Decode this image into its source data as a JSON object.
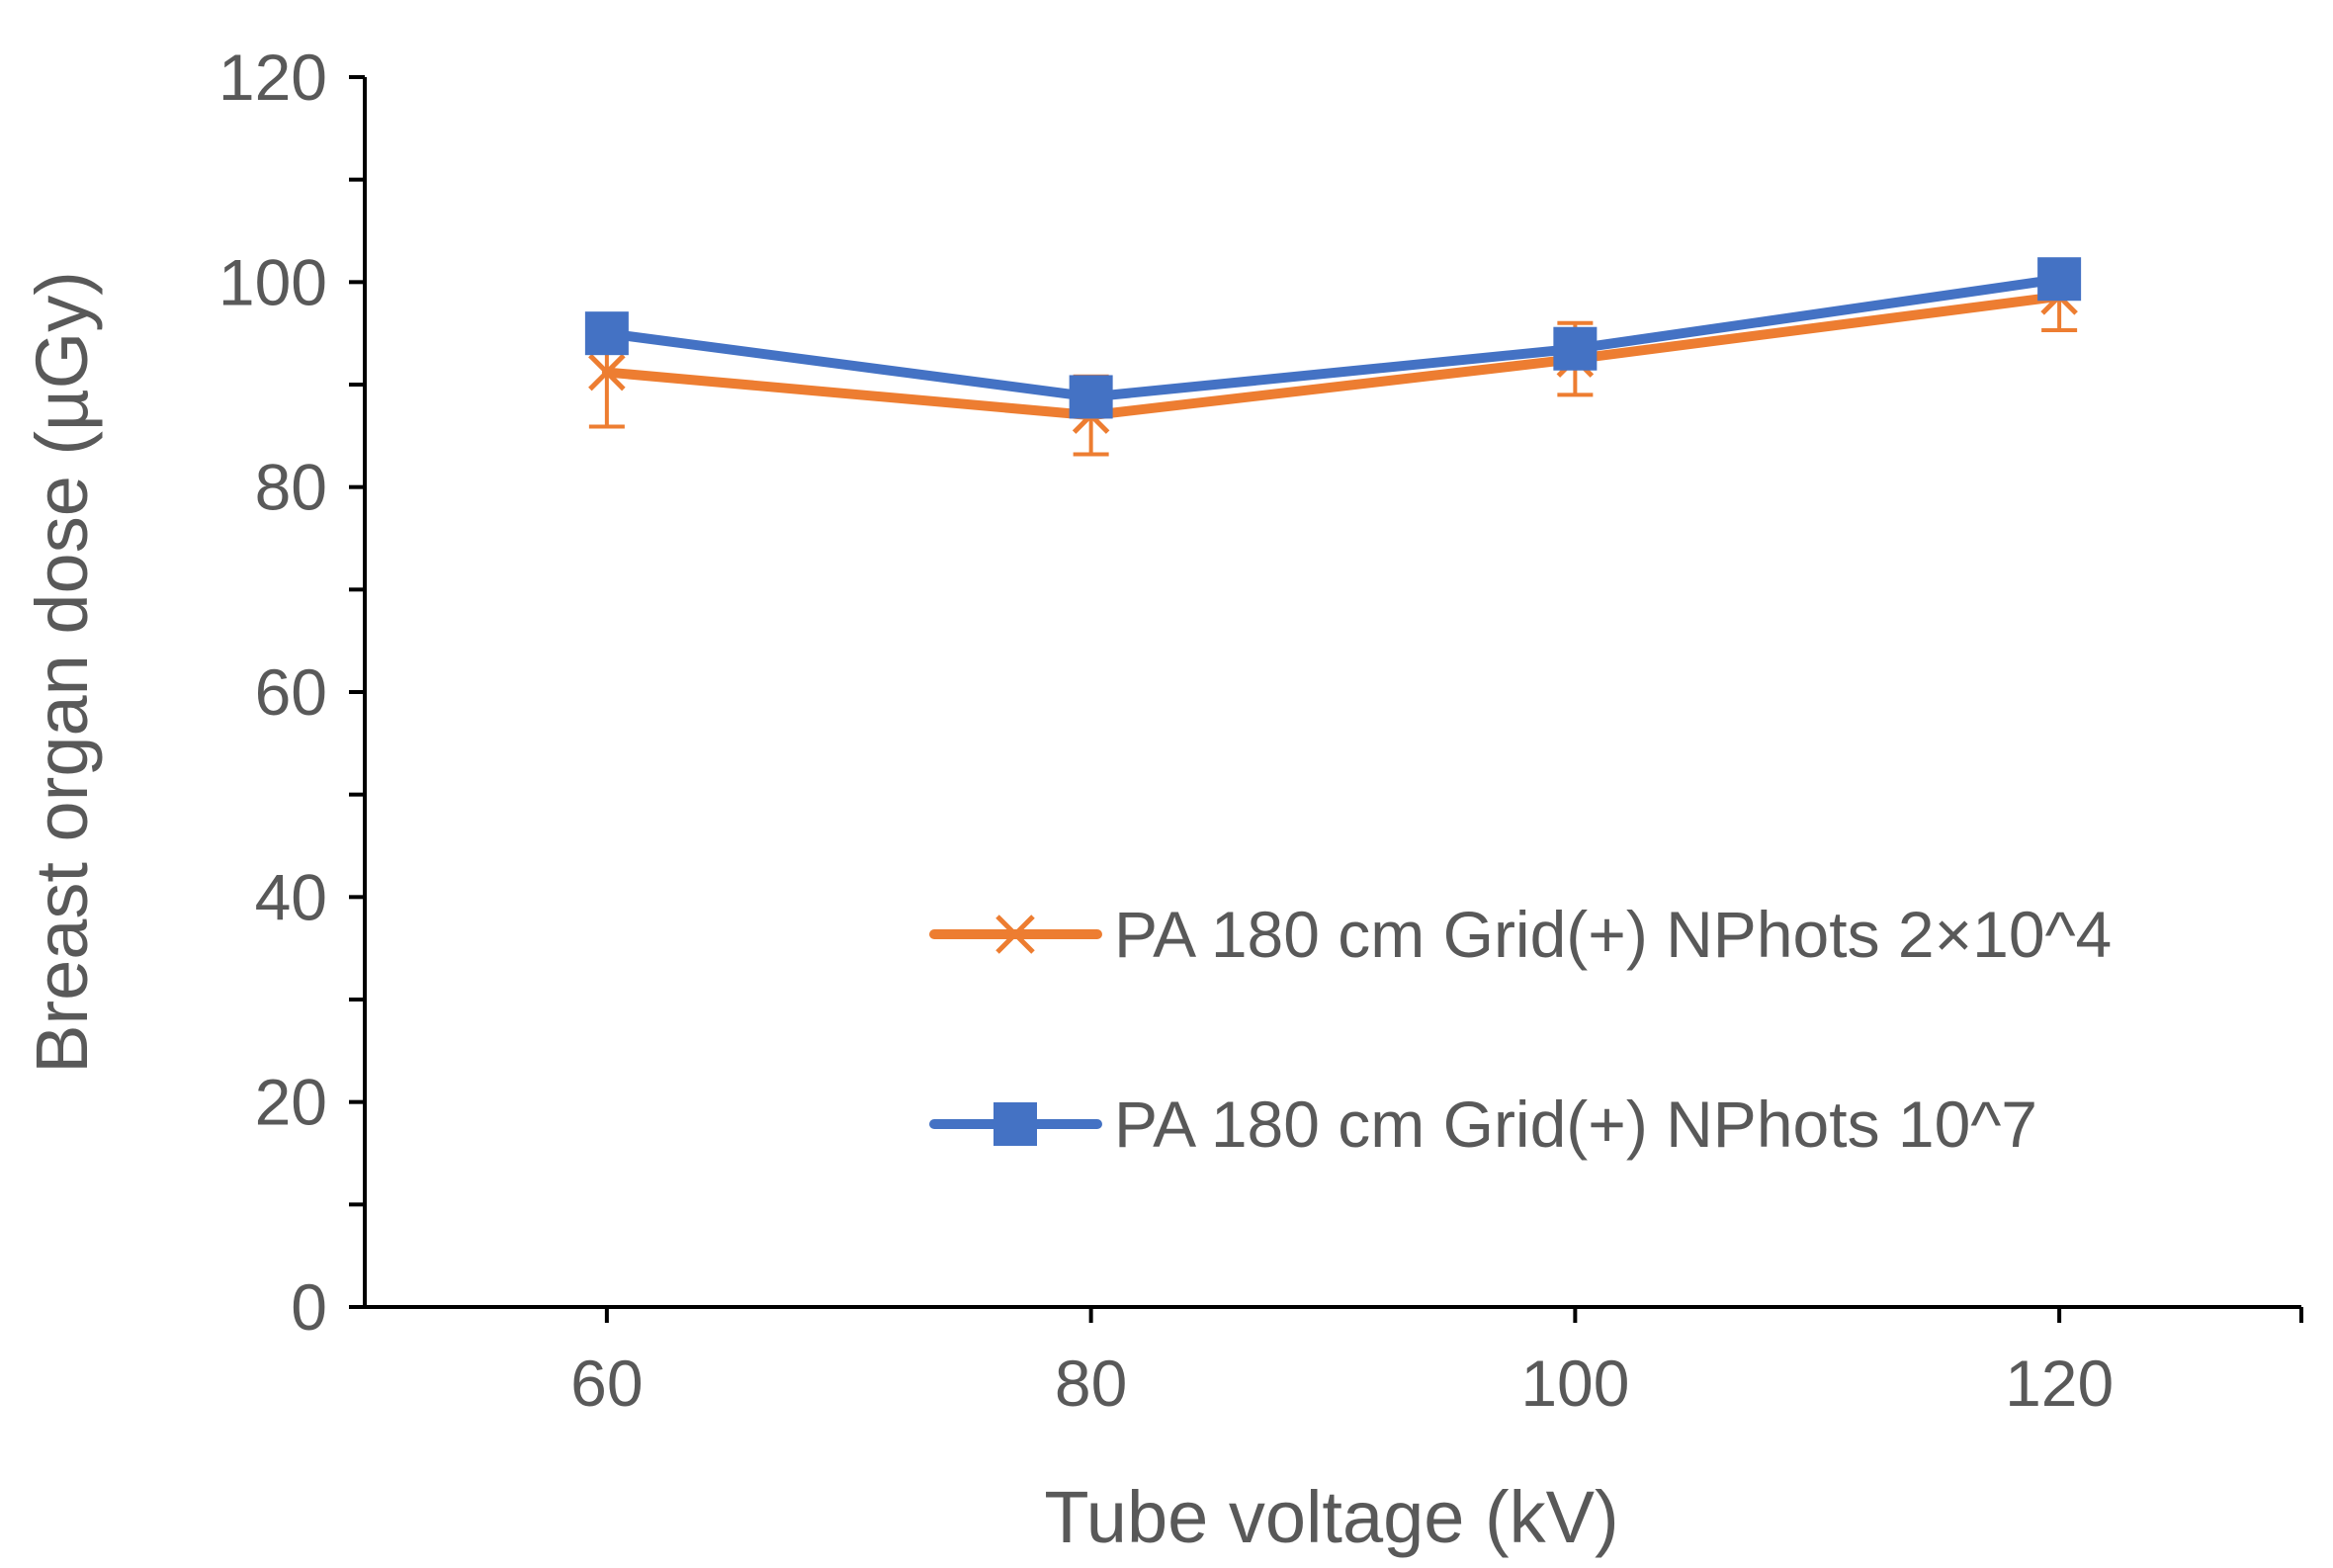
{
  "chart_data": {
    "type": "line",
    "title": "",
    "xlabel": "Tube voltage (kV)",
    "ylabel": "Breast organ dose (µGy)",
    "xlim": [
      50,
      130
    ],
    "ylim": [
      0,
      120
    ],
    "x_ticks": [
      60,
      80,
      100,
      120
    ],
    "y_ticks": [
      0,
      20,
      40,
      60,
      80,
      100,
      120
    ],
    "y_minor_step": 10,
    "grid": false,
    "legend_position": "center-right",
    "series": [
      {
        "name": "PA 180 cm Grid(+) NPhots 2×10^4",
        "marker": "x",
        "color": "#ED7D31",
        "x": [
          60,
          80,
          100,
          120
        ],
        "values": [
          91.2,
          87.0,
          92.5,
          98.6
        ],
        "error": [
          5.3,
          3.8,
          3.5,
          3.3
        ]
      },
      {
        "name": "PA 180 cm Grid(+) NPhots 10^7",
        "marker": "square",
        "color": "#4472C4",
        "x": [
          60,
          80,
          100,
          120
        ],
        "values": [
          95.0,
          88.8,
          93.5,
          100.3
        ],
        "error": [
          0.4,
          0.4,
          0.4,
          0.4
        ]
      }
    ]
  }
}
